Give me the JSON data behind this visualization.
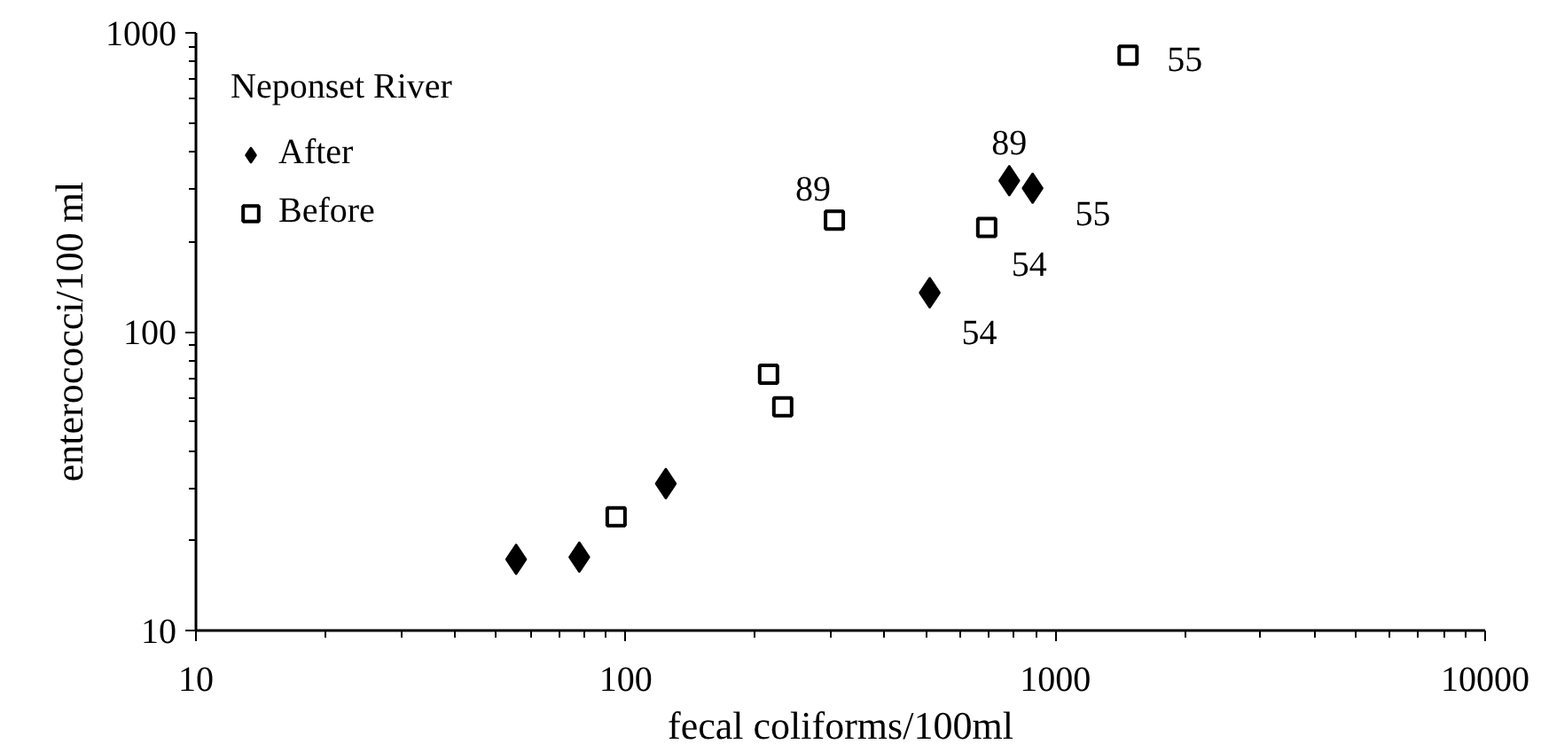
{
  "chart_data": {
    "type": "scatter",
    "xlabel": "fecal coliforms/100ml",
    "ylabel": "enterococci/100 ml",
    "legend_title": "Neponset River",
    "log": "xy",
    "xlim": [
      10,
      10000
    ],
    "ylim": [
      10,
      1000
    ],
    "xticks": [
      10,
      100,
      1000,
      10000
    ],
    "yticks": [
      10,
      100,
      1000
    ],
    "grid": false,
    "legend": "top left",
    "series": [
      {
        "name": "After",
        "color": "#000000",
        "marker": "diamond",
        "x": [
          55.6,
          78,
          124,
          510,
          781,
          885
        ],
        "values": [
          17.3,
          17.6,
          31,
          135,
          320,
          302
        ]
      },
      {
        "name": "Before",
        "color": "#000000",
        "marker": "square",
        "x": [
          95,
          215,
          232,
          306,
          692,
          1476
        ],
        "values": [
          24,
          72,
          56,
          236,
          223,
          841
        ]
      }
    ],
    "annotations": [
      {
        "text": "89",
        "x": 306,
        "y": 236
      },
      {
        "text": "55",
        "x": 1476,
        "y": 841
      },
      {
        "text": "89",
        "x": 781,
        "y": 320
      },
      {
        "text": "55",
        "x": 885,
        "y": 302
      },
      {
        "text": "54",
        "x": 692,
        "y": 223
      },
      {
        "text": "54",
        "x": 510,
        "y": 135
      }
    ]
  }
}
